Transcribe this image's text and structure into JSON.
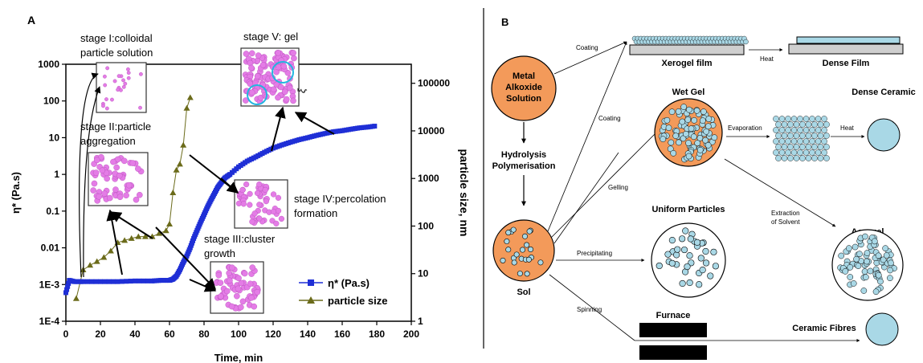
{
  "panel_a": {
    "label": "A",
    "x_axis_label": "Time, min",
    "y_left_label": "η* (Pa.s)",
    "y_right_label": "particle size, nm",
    "x_ticks": [
      "0",
      "20",
      "40",
      "60",
      "80",
      "100",
      "120",
      "140",
      "160",
      "180",
      "200"
    ],
    "y_left_ticks": [
      "1E-4",
      "1E-3",
      "0.01",
      "0.1",
      "1",
      "10",
      "100",
      "1000"
    ],
    "y_right_ticks": [
      "1",
      "10",
      "100",
      "1000",
      "10000",
      "100000"
    ],
    "stage1": [
      "stage I:colloidal",
      "particle solution"
    ],
    "stage2": [
      "stage II:particle",
      "aggregation"
    ],
    "stage3": [
      "stage III:cluster",
      "growth"
    ],
    "stage4": [
      "stage IV:percolation",
      "formation"
    ],
    "stage5": "stage V: gel",
    "xi": "ξ",
    "legend": [
      "η* (Pa.s)",
      "particle size"
    ],
    "colors": {
      "viscosity": "#1f2fd6",
      "particle": "#6b6b1a",
      "sphere": "#e47ce6"
    }
  },
  "chart_data": [
    {
      "type": "scatter",
      "name": "η* (Pa.s)",
      "xlabel": "Time, min",
      "ylabel": "η* (Pa.s)",
      "xlim": [
        0,
        200
      ],
      "ylim": [
        0.0001,
        1000
      ],
      "yscale": "log",
      "x": [
        0,
        2,
        5,
        10,
        20,
        30,
        40,
        50,
        55,
        60,
        62,
        64,
        66,
        68,
        70,
        72,
        74,
        76,
        78,
        80,
        82,
        84,
        86,
        88,
        90,
        92,
        95,
        100,
        105,
        110,
        115,
        120,
        125,
        130,
        135,
        140,
        145,
        150,
        155,
        160,
        165,
        170,
        175,
        180
      ],
      "y": [
        0.0006,
        0.0013,
        0.0012,
        0.0012,
        0.0012,
        0.0012,
        0.00125,
        0.00125,
        0.0013,
        0.0013,
        0.0014,
        0.0017,
        0.0025,
        0.004,
        0.006,
        0.01,
        0.018,
        0.03,
        0.05,
        0.08,
        0.13,
        0.2,
        0.3,
        0.45,
        0.6,
        0.8,
        1.0,
        1.6,
        2.3,
        3.0,
        4.0,
        5.2,
        6.3,
        7.5,
        8.8,
        10,
        11.5,
        13,
        14.5,
        15.5,
        17,
        18.5,
        19.5,
        21
      ]
    },
    {
      "type": "line",
      "name": "particle size",
      "ylabel": "particle size, nm",
      "ylim": [
        1,
        100000
      ],
      "yscale": "log",
      "x": [
        6,
        10,
        14,
        18,
        22,
        26,
        30,
        34,
        38,
        42,
        46,
        50,
        54,
        58,
        60,
        62,
        64,
        66,
        68,
        70,
        72
      ],
      "y": [
        3,
        12,
        15,
        18,
        22,
        30,
        45,
        50,
        55,
        60,
        60,
        60,
        70,
        80,
        110,
        500,
        1500,
        2000,
        5000,
        30000,
        50000
      ]
    }
  ],
  "panel_b": {
    "label": "B",
    "metal": [
      "Metal",
      "Alkoxide",
      "Solution"
    ],
    "hydrolysis": [
      "Hydrolysis",
      "Polymerisation"
    ],
    "sol": "Sol",
    "coating_top": "Coating",
    "coating_mid": "Coating",
    "gelling": "Gelling",
    "precipitating": "Precipitating",
    "spinning": "Spinning",
    "xerogel": "Xerogel film",
    "heat1": "Heat",
    "dense_film": "Dense Film",
    "wet_gel": "Wet Gel",
    "evaporation": "Evaporation",
    "heat2": "Heat",
    "dense_ceramic": "Dense Ceramic",
    "extraction": [
      "Extraction",
      "of Solvent"
    ],
    "aerogel": "Aerogel",
    "uniform": "Uniform Particles",
    "furnace": "Furnace",
    "fibres": "Ceramic Fibres",
    "colors": {
      "orange": "#f39a5a",
      "bead": "#a9d8e6",
      "film": "#cfcfcf"
    }
  }
}
